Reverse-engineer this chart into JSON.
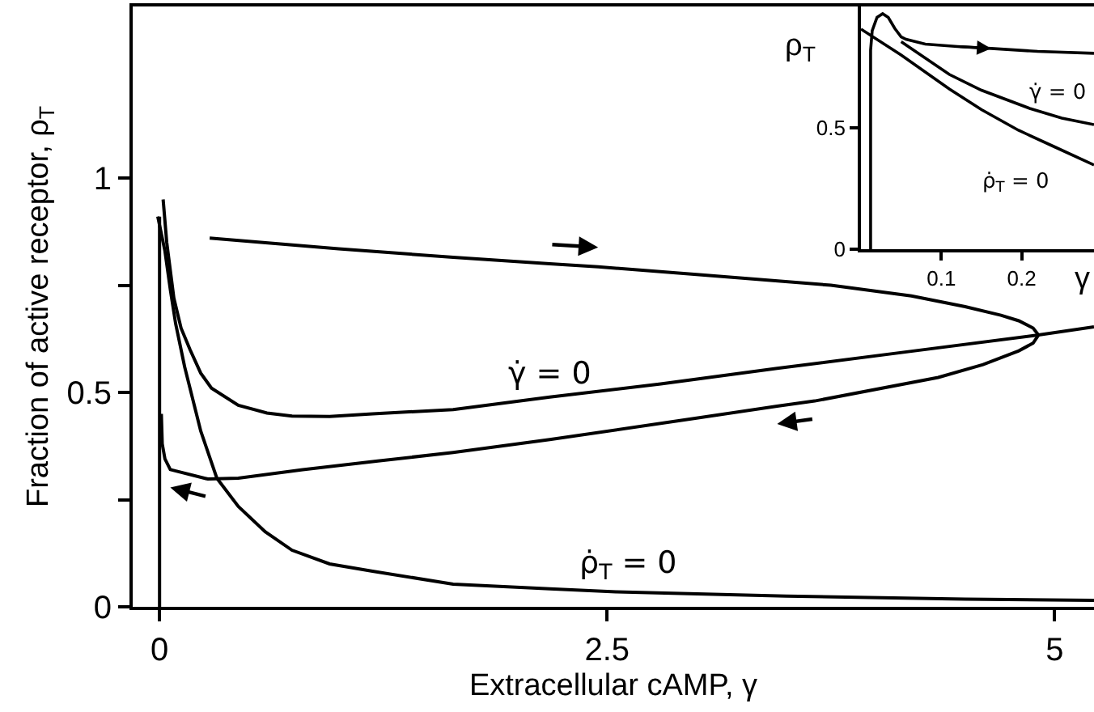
{
  "chart_data": [
    {
      "type": "line",
      "xlabel": "Extracellular cAMP, γ",
      "ylabel": "Fraction of active receptor, ρ$_{T}$",
      "xlim": [
        -0.15,
        5.22
      ],
      "xticks": [
        0,
        2.5,
        5
      ],
      "ylim": [
        0,
        1.4
      ],
      "yticks": [
        0,
        {
          "value": 0.25,
          "label": null
        },
        0.5,
        {
          "value": 0.75,
          "label": null
        },
        1
      ],
      "series": [
        {
          "name": "γ̇ = 0",
          "color": "#000000",
          "x": [
            0.02,
            0.04,
            0.08,
            0.12,
            0.17,
            0.23,
            0.29,
            0.44,
            0.6,
            0.74,
            0.95,
            1.19,
            1.64,
            2.18,
            2.8,
            3.45,
            4.2,
            4.91,
            5.22
          ],
          "values": [
            0.95,
            0.85,
            0.72,
            0.65,
            0.6,
            0.545,
            0.51,
            0.47,
            0.452,
            0.445,
            0.444,
            0.45,
            0.46,
            0.489,
            0.52,
            0.556,
            0.596,
            0.634,
            0.653
          ]
        },
        {
          "name": "ρ̇$_{T}$ = 0",
          "color": "#000000",
          "x": [
            -0.01,
            0.03,
            0.06,
            0.09,
            0.14,
            0.23,
            0.32,
            0.44,
            0.59,
            0.74,
            0.95,
            1.19,
            1.64,
            2.18,
            2.55,
            3.5,
            4.5,
            5.22
          ],
          "values": [
            0.91,
            0.83,
            0.74,
            0.66,
            0.56,
            0.41,
            0.3,
            0.234,
            0.175,
            0.132,
            0.1,
            0.083,
            0.053,
            0.042,
            0.035,
            0.025,
            0.018,
            0.015
          ]
        },
        {
          "color": "#000000",
          "x": [
            0.28,
            1.0,
            1.64,
            2.18,
            2.45,
            3.0,
            3.75,
            4.2,
            4.5,
            4.7,
            4.8,
            4.88,
            4.91,
            4.88,
            4.8,
            4.6,
            4.35,
            3.66,
            3.45,
            3.0,
            2.18,
            1.64,
            1.22,
            0.8,
            0.44,
            0.27,
            0.06,
            0.03,
            0.015,
            0.01
          ],
          "values": [
            0.86,
            0.835,
            0.815,
            0.8,
            0.793,
            0.775,
            0.75,
            0.725,
            0.7,
            0.68,
            0.667,
            0.65,
            0.634,
            0.615,
            0.597,
            0.565,
            0.535,
            0.48,
            0.468,
            0.44,
            0.39,
            0.36,
            0.34,
            0.32,
            0.3,
            0.298,
            0.32,
            0.345,
            0.38,
            0.45
          ]
        },
        {
          "color": "#000000",
          "x": [
            0.0,
            0.0
          ],
          "values": [
            0.0,
            0.91
          ]
        }
      ]
    },
    {
      "type": "line",
      "xlabel": "γ",
      "ylabel": "ρ$_{T}$",
      "xlim": [
        0,
        0.29
      ],
      "xticks": [
        0.1,
        0.2
      ],
      "ylim": [
        0,
        1.0
      ],
      "yticks": [
        0,
        0.5
      ],
      "series": [
        {
          "color": "#000000",
          "x": [
            0.012,
            0.012,
            0.014,
            0.02,
            0.027,
            0.034,
            0.042,
            0.05,
            0.056,
            0.08,
            0.12,
            0.162,
            0.22,
            0.29
          ],
          "values": [
            0.0,
            0.82,
            0.9,
            0.955,
            0.97,
            0.955,
            0.91,
            0.875,
            0.865,
            0.845,
            0.835,
            0.827,
            0.815,
            0.807
          ]
        },
        {
          "name": "γ̇ = 0",
          "color": "#000000",
          "x": [
            0.05,
            0.07,
            0.11,
            0.15,
            0.21,
            0.25,
            0.29
          ],
          "values": [
            0.855,
            0.81,
            0.72,
            0.655,
            0.58,
            0.54,
            0.513
          ]
        },
        {
          "name": "ρ̇$_{T}$ = 0",
          "color": "#000000",
          "x": [
            0.0,
            0.05,
            0.11,
            0.15,
            0.196,
            0.242,
            0.29
          ],
          "values": [
            0.907,
            0.8,
            0.66,
            0.575,
            0.49,
            0.42,
            0.347
          ]
        }
      ]
    }
  ]
}
